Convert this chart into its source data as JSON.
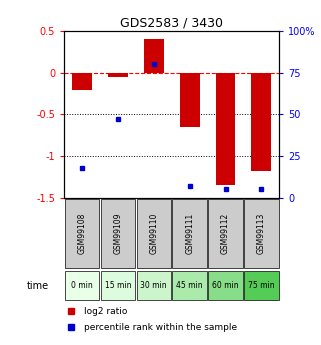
{
  "title": "GDS2583 / 3430",
  "samples": [
    "GSM99108",
    "GSM99109",
    "GSM99110",
    "GSM99111",
    "GSM99112",
    "GSM99113"
  ],
  "time_labels": [
    "0 min",
    "15 min",
    "30 min",
    "45 min",
    "60 min",
    "75 min"
  ],
  "time_colors": [
    "#e8ffe8",
    "#ddfcdd",
    "#ccf5cc",
    "#aaeaaa",
    "#88dd88",
    "#55cc55"
  ],
  "log2_ratios": [
    -0.21,
    -0.05,
    0.4,
    -0.65,
    -1.35,
    -1.18
  ],
  "percentile_ranks": [
    18,
    47,
    80,
    7,
    5,
    5
  ],
  "ylim_left": [
    -1.5,
    0.5
  ],
  "ylim_right": [
    0,
    100
  ],
  "bar_color": "#cc0000",
  "dot_color": "#0000cc",
  "right_yticks": [
    0,
    25,
    50,
    75,
    100
  ],
  "right_yticklabels": [
    "0",
    "25",
    "50",
    "75",
    "100%"
  ],
  "bg_color": "#ffffff",
  "plot_bg": "#ffffff",
  "sample_box_color": "#cccccc",
  "legend_log2_label": "log2 ratio",
  "legend_pct_label": "percentile rank within the sample"
}
